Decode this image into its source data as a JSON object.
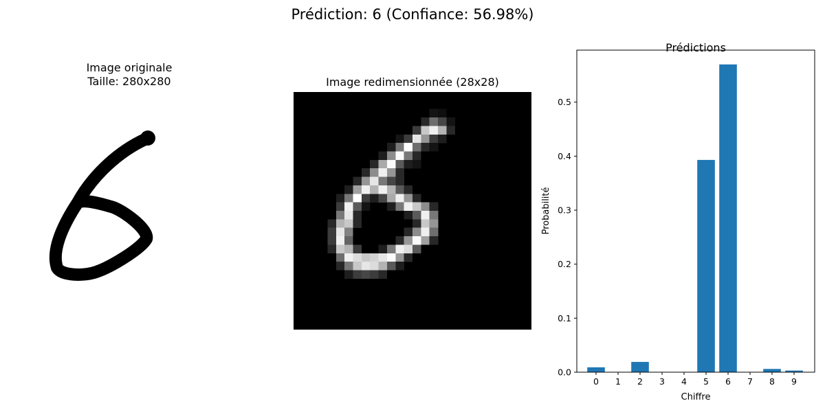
{
  "suptitle": "Prédiction: 6 (Confiance: 56.98%)",
  "original": {
    "title_line1": "Image originale",
    "title_line2": "Taille: 280x280"
  },
  "resized": {
    "title": "Image redimensionnée (28x28)"
  },
  "chart_data": {
    "type": "bar",
    "title": "Prédictions",
    "xlabel": "Chiffre",
    "ylabel": "Probabilité",
    "categories": [
      "0",
      "1",
      "2",
      "3",
      "4",
      "5",
      "6",
      "7",
      "8",
      "9"
    ],
    "values": [
      0.009,
      0.0,
      0.019,
      0.0,
      0.0,
      0.393,
      0.5698,
      0.0,
      0.006,
      0.003
    ],
    "ylim": [
      0,
      0.6
    ],
    "yticks": [
      0.0,
      0.1,
      0.2,
      0.3,
      0.4,
      0.5
    ],
    "ytick_labels": [
      "0.0",
      "0.1",
      "0.2",
      "0.3",
      "0.4",
      "0.5"
    ],
    "bar_color": "#1f77b4",
    "grid": false
  }
}
